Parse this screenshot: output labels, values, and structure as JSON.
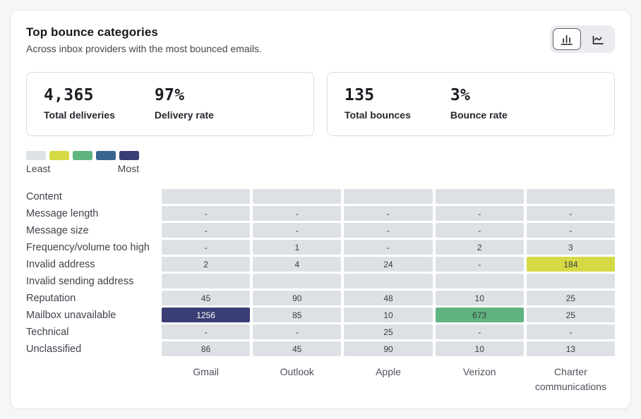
{
  "header": {
    "title": "Top bounce categories",
    "subtitle": "Across inbox providers with the most bounced emails."
  },
  "view_toggle": {
    "options": [
      {
        "icon": "bar-chart-icon",
        "active": true
      },
      {
        "icon": "line-chart-icon",
        "active": false
      }
    ]
  },
  "stats": {
    "deliveries": {
      "value": "4,365",
      "label": "Total deliveries",
      "rate": "97%",
      "rate_label": "Delivery rate"
    },
    "bounces": {
      "value": "135",
      "label": "Total bounces",
      "rate": "3%",
      "rate_label": "Bounce rate"
    }
  },
  "legend": {
    "least_label": "Least",
    "most_label": "Most"
  },
  "colors": {
    "palette": [
      "#dde1e5",
      "#d5d944",
      "#5fb47f",
      "#38658e",
      "#3a3e74"
    ],
    "cell_text": "#383b42",
    "cell_text_inverse": "#ffffff",
    "page_bg": "#f5f6f8"
  },
  "chart_data": {
    "type": "heatmap",
    "title": "Top bounce categories",
    "subtitle": "Across inbox providers with the most bounced emails.",
    "legend": {
      "least": "Least",
      "most": "Most",
      "position": "top-left"
    },
    "x_categories": [
      "Gmail",
      "Outlook",
      "Apple",
      "Verizon",
      "Charter communications"
    ],
    "y_categories": [
      "Content",
      "Message length",
      "Message size",
      "Frequency/volume too high",
      "Invalid address",
      "Invalid sending address",
      "Reputation",
      "Mailbox unavailable",
      "Technical",
      "Unclassified"
    ],
    "cells": [
      [
        "",
        "",
        "",
        "",
        ""
      ],
      [
        "-",
        "-",
        "-",
        "-",
        "-"
      ],
      [
        "-",
        "-",
        "-",
        "-",
        "-"
      ],
      [
        "-",
        "1",
        "-",
        "2",
        "3"
      ],
      [
        "2",
        "4",
        "24",
        "-",
        "184"
      ],
      [
        "",
        "",
        "",
        "",
        ""
      ],
      [
        "45",
        "90",
        "48",
        "10",
        "25"
      ],
      [
        "1256",
        "85",
        "10",
        "673",
        "25"
      ],
      [
        "-",
        "-",
        "25",
        "-",
        "-"
      ],
      [
        "86",
        "45",
        "90",
        "10",
        "13"
      ]
    ],
    "levels": [
      [
        0,
        0,
        0,
        0,
        0
      ],
      [
        0,
        0,
        0,
        0,
        0
      ],
      [
        0,
        0,
        0,
        0,
        0
      ],
      [
        0,
        0,
        0,
        0,
        0
      ],
      [
        0,
        0,
        0,
        0,
        1
      ],
      [
        0,
        0,
        0,
        0,
        0
      ],
      [
        0,
        0,
        0,
        0,
        0
      ],
      [
        4,
        0,
        0,
        2,
        0
      ],
      [
        0,
        0,
        0,
        0,
        0
      ],
      [
        0,
        0,
        0,
        0,
        0
      ]
    ],
    "summary": {
      "total_deliveries": 4365,
      "delivery_rate_pct": 97,
      "total_bounces": 135,
      "bounce_rate_pct": 3
    }
  }
}
